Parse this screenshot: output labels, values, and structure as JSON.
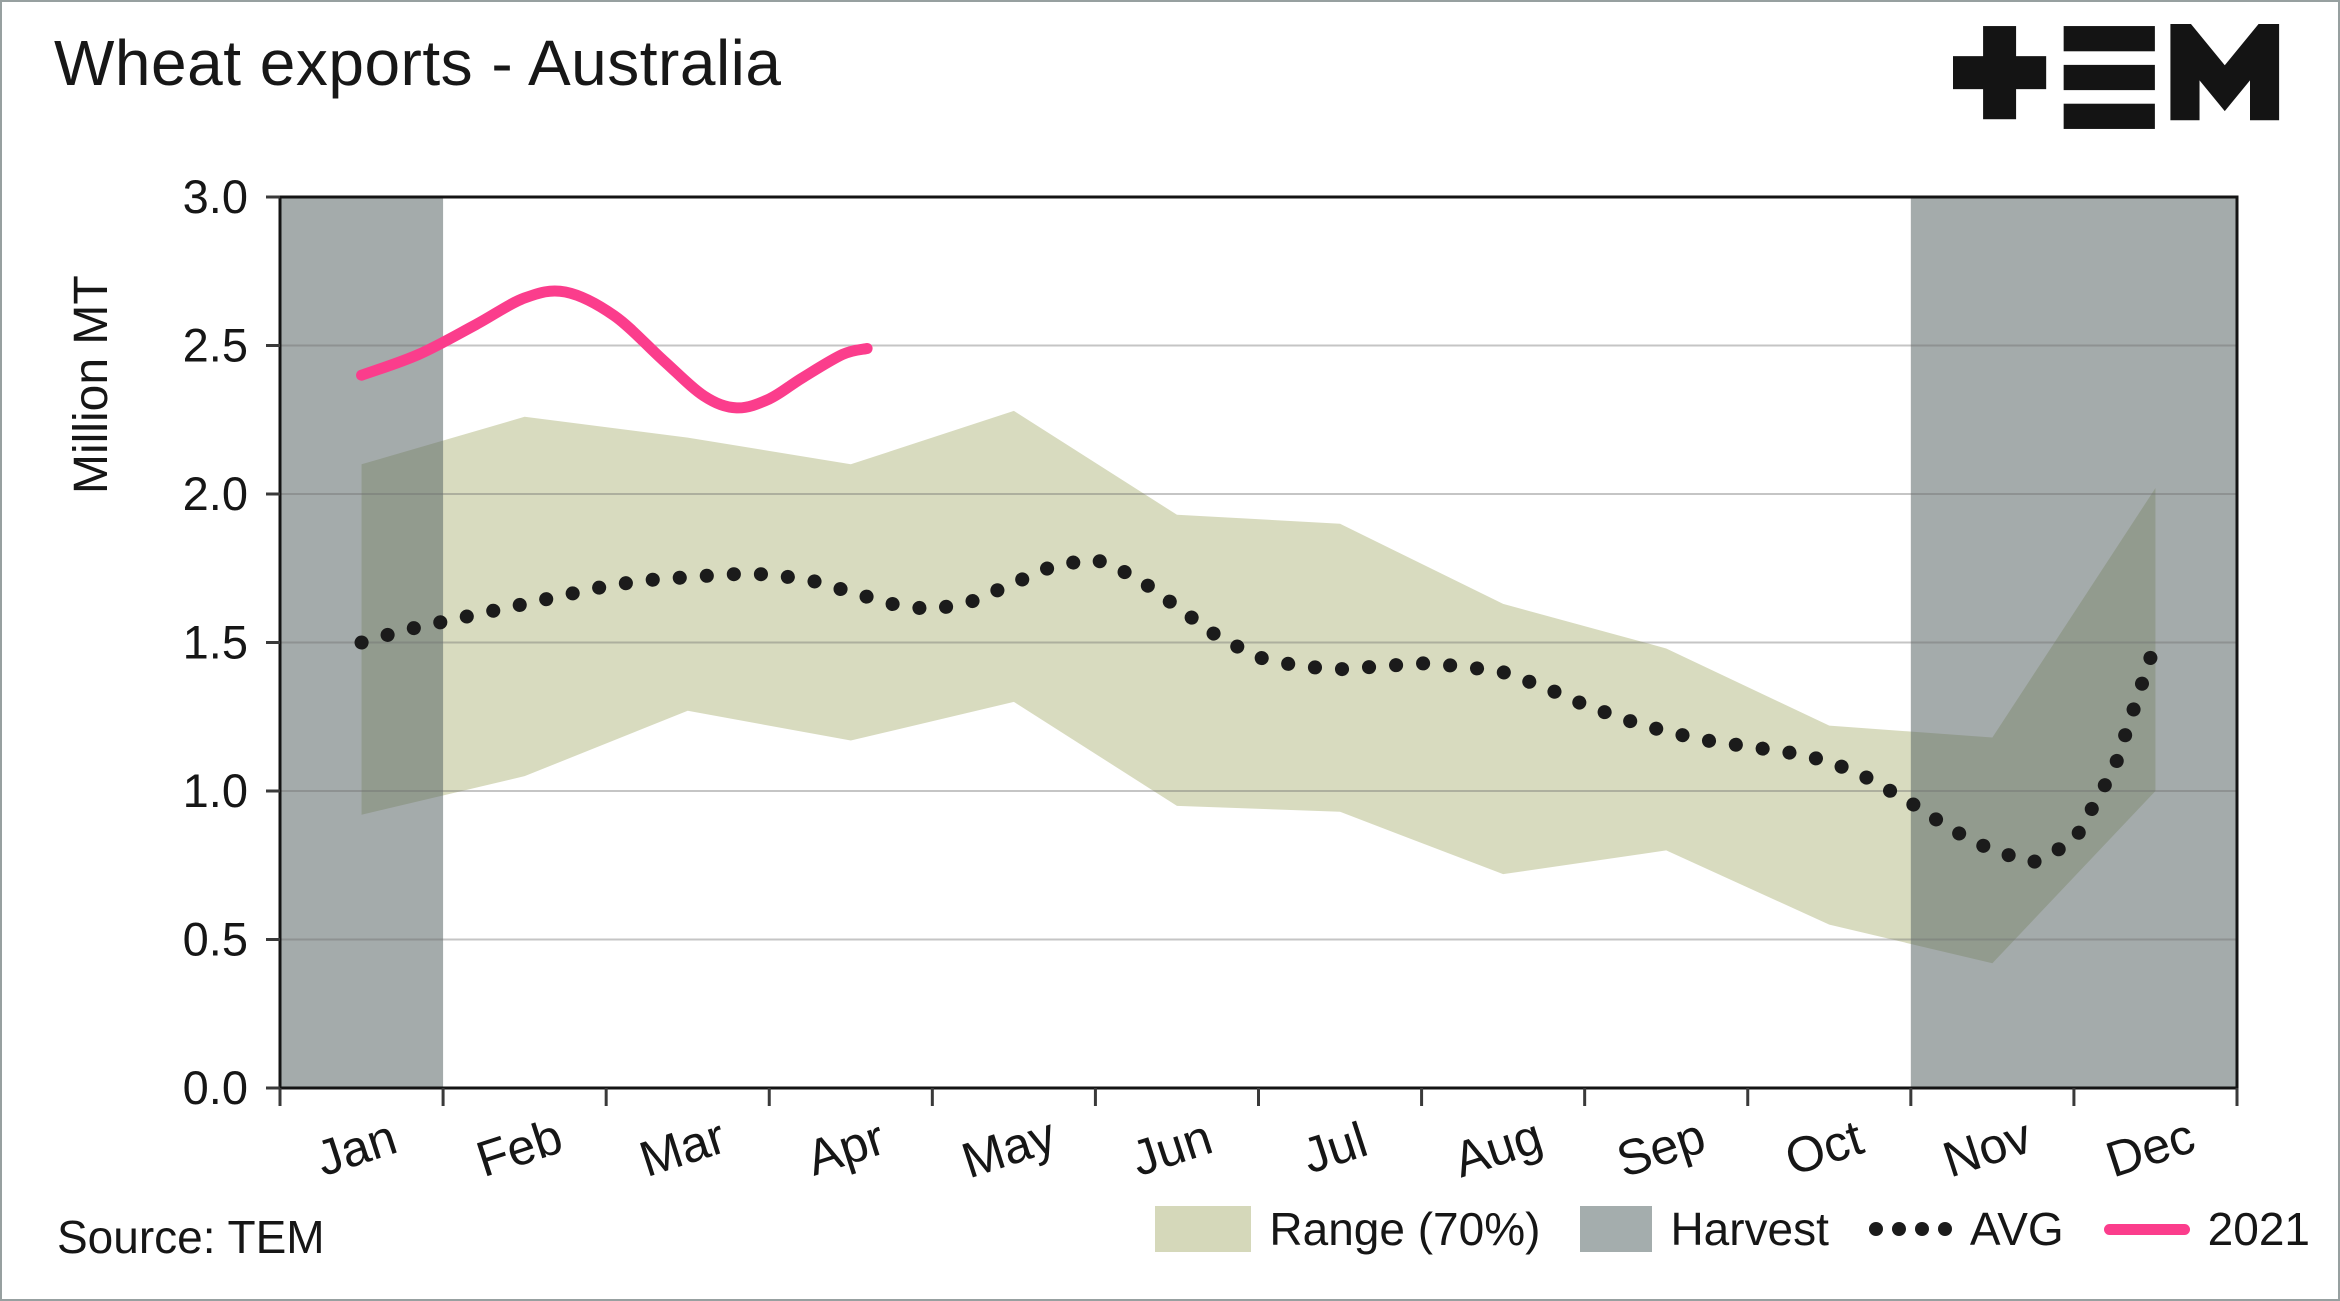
{
  "chart_data": {
    "type": "area",
    "title": "Wheat exports - Australia",
    "source": "Source: TEM",
    "xlabel": "",
    "ylabel": "Million MT",
    "ylim": [
      0,
      3
    ],
    "yticks": [
      0,
      0.5,
      1,
      1.5,
      2,
      2.5,
      3
    ],
    "ytick_labels": [
      "0.0",
      "0.5",
      "1.0",
      "1.5",
      "2.0",
      "2.5",
      "3.0"
    ],
    "months": [
      "Jan",
      "Feb",
      "Mar",
      "Apr",
      "May",
      "Jun",
      "Jul",
      "Aug",
      "Sep",
      "Oct",
      "Nov",
      "Dec"
    ],
    "grid": "horizontal",
    "legend_position": "bottom-right",
    "legend": {
      "range": "Range (70%)",
      "harvest": "Harvest",
      "avg": "AVG",
      "y2021": "2021"
    },
    "series": [
      {
        "name": "Range (70%)",
        "type": "band",
        "months_t": [
          0.5,
          1.5,
          2.5,
          3.5,
          4.5,
          5.5,
          6.5,
          7.5,
          8.5,
          9.5,
          10.5,
          11.5
        ],
        "upper": [
          2.1,
          2.26,
          2.19,
          2.1,
          2.28,
          1.93,
          1.9,
          1.63,
          1.48,
          1.22,
          1.18,
          2.02
        ],
        "lower": [
          0.92,
          1.05,
          1.27,
          1.17,
          1.3,
          0.95,
          0.93,
          0.72,
          0.8,
          0.55,
          0.42,
          1.0
        ]
      },
      {
        "name": "Harvest",
        "type": "vspan",
        "spans_months": [
          [
            0,
            1
          ],
          [
            10,
            12
          ]
        ]
      },
      {
        "name": "AVG",
        "type": "dotted-line",
        "t_start": 0.5,
        "t_step": 0.25,
        "values": [
          1.5,
          1.54,
          1.57,
          1.6,
          1.63,
          1.66,
          1.69,
          1.71,
          1.72,
          1.73,
          1.73,
          1.71,
          1.67,
          1.63,
          1.61,
          1.64,
          1.7,
          1.76,
          1.78,
          1.72,
          1.62,
          1.52,
          1.45,
          1.42,
          1.41,
          1.42,
          1.43,
          1.42,
          1.4,
          1.35,
          1.29,
          1.24,
          1.2,
          1.17,
          1.15,
          1.13,
          1.1,
          1.04,
          0.96,
          0.87,
          0.8,
          0.76,
          0.83,
          1.08,
          1.5
        ]
      },
      {
        "name": "2021",
        "type": "line",
        "points": [
          [
            0.5,
            2.4
          ],
          [
            0.85,
            2.47
          ],
          [
            1.2,
            2.57
          ],
          [
            1.5,
            2.66
          ],
          [
            1.75,
            2.68
          ],
          [
            2.05,
            2.6
          ],
          [
            2.35,
            2.45
          ],
          [
            2.6,
            2.33
          ],
          [
            2.8,
            2.29
          ],
          [
            3.0,
            2.32
          ],
          [
            3.2,
            2.39
          ],
          [
            3.45,
            2.47
          ],
          [
            3.6,
            2.49
          ]
        ]
      }
    ],
    "colors": {
      "range": "#d5d8ba",
      "harvest_fill": "#5a6666",
      "harvest_opacity": 0.55,
      "harvest_legend": "#a4adad",
      "avg": "#1b1b1b",
      "line2021": "#fb3d8c",
      "grid": "#c9c9c9",
      "axis": "#141414",
      "text": "#161616"
    }
  }
}
